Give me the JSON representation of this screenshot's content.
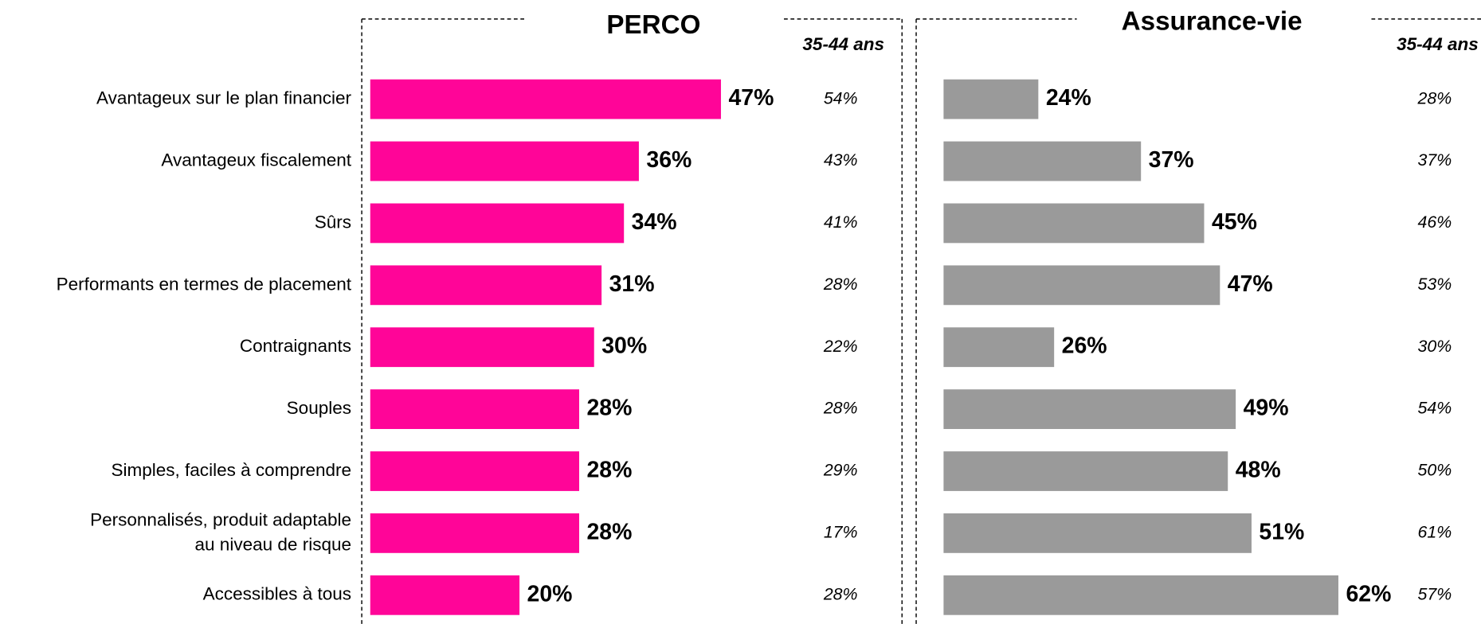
{
  "chart_data": [
    {
      "type": "bar",
      "title": "PERCO",
      "color": "#ff0598",
      "categories": [
        "Avantageux sur le plan financier",
        "Avantageux fiscalement",
        "Sûrs",
        "Performants en termes de placement",
        "Contraignants",
        "Souples",
        "Simples, faciles à comprendre",
        "Personnalisés, produit adaptable\nau niveau de risque",
        "Accessibles à tous"
      ],
      "values": [
        47,
        36,
        34,
        31,
        30,
        28,
        28,
        28,
        20
      ],
      "value_labels": [
        "47%",
        "36%",
        "34%",
        "31%",
        "30%",
        "28%",
        "28%",
        "28%",
        "20%"
      ],
      "xlim": [
        0,
        60
      ],
      "column_header": "35-44 ans",
      "column_values": [
        54,
        43,
        41,
        28,
        22,
        28,
        29,
        17,
        28
      ],
      "column_labels": [
        "54%",
        "43%",
        "41%",
        "28%",
        "22%",
        "28%",
        "29%",
        "17%",
        "28%"
      ]
    },
    {
      "type": "bar",
      "title": "Assurance-vie",
      "color": "#9a9a9a",
      "values": [
        24,
        37,
        45,
        47,
        26,
        49,
        48,
        51,
        62
      ],
      "value_labels": [
        "24%",
        "37%",
        "45%",
        "47%",
        "26%",
        "49%",
        "48%",
        "51%",
        "62%"
      ],
      "xlim": [
        12,
        62
      ],
      "column_header": "35-44 ans",
      "column_values": [
        28,
        37,
        46,
        53,
        30,
        54,
        50,
        61,
        57
      ],
      "column_labels": [
        "28%",
        "37%",
        "46%",
        "53%",
        "30%",
        "54%",
        "50%",
        "61%",
        "57%"
      ]
    }
  ]
}
